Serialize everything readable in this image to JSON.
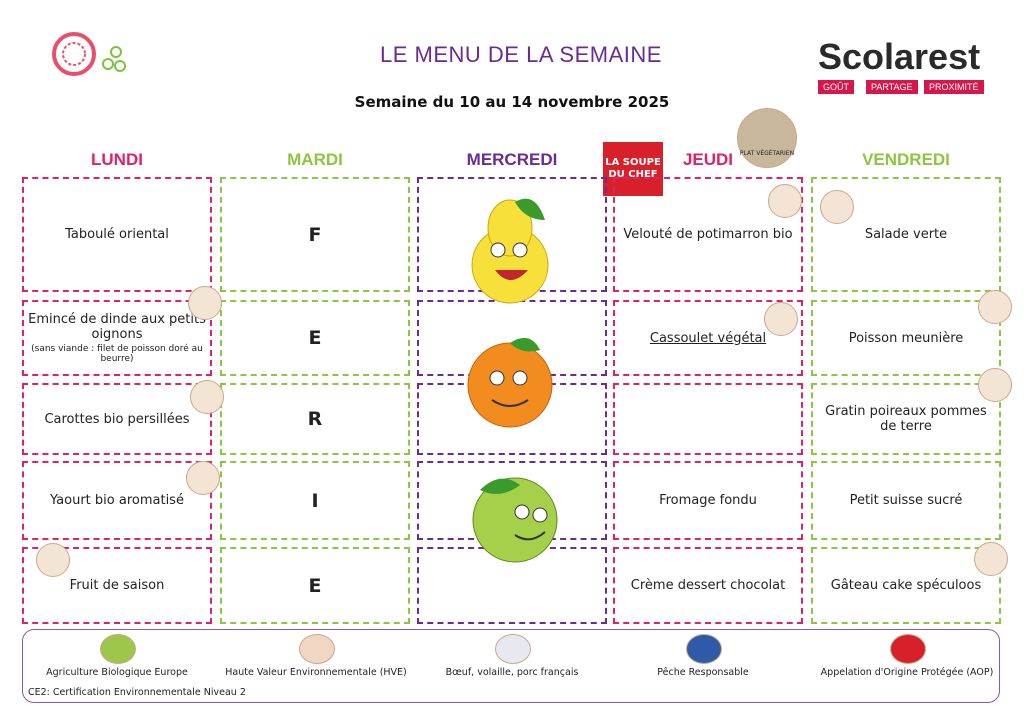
{
  "header": {
    "title": "LE MENU DE LA SEMAINE",
    "subtitle": "Semaine du 10 au 14 novembre 2025",
    "brand": "Scolarest",
    "tagline": [
      "GOÛT",
      "PARTAGE",
      "PROXIMITÉ"
    ]
  },
  "badges": {
    "soup": "LA SOUPE DU CHEF",
    "veg": "PLAT VÉGÉTARIEN"
  },
  "days": [
    {
      "name": "LUNDI",
      "color": "#e0206a",
      "items": [
        {
          "text": "Taboulé oriental"
        },
        {
          "text": "Emincé de dinde aux petits oignons",
          "note": "(sans viande : filet de poisson doré au beurre)"
        },
        {
          "text": "Carottes bio persillées"
        },
        {
          "text": "Yaourt bio aromatisé"
        },
        {
          "text": "Fruit de saison"
        }
      ]
    },
    {
      "name": "MARDI",
      "color": "#8dc63f",
      "items": [
        {
          "text": "F"
        },
        {
          "text": "E"
        },
        {
          "text": "R"
        },
        {
          "text": "I"
        },
        {
          "text": "E"
        }
      ]
    },
    {
      "name": "MERCREDI",
      "color": "#6a2c91",
      "items": [
        null,
        null,
        null,
        null,
        null
      ]
    },
    {
      "name": "JEUDI",
      "color": "#e0206a",
      "items": [
        {
          "text": "Velouté de potimarron bio"
        },
        {
          "text": "Cassoulet végétal"
        },
        null,
        {
          "text": "Fromage fondu"
        },
        {
          "text": "Crème dessert chocolat"
        }
      ]
    },
    {
      "name": "VENDREDI",
      "color": "#8dc63f",
      "items": [
        {
          "text": "Salade verte"
        },
        {
          "text": "Poisson meunière"
        },
        {
          "text": "Gratin poireaux pommes de terre"
        },
        {
          "text": "Petit suisse sucré"
        },
        {
          "text": "Gâteau cake spéculoos"
        }
      ]
    }
  ],
  "legend": [
    "Agriculture Biologique Europe",
    "Haute Valeur Environnementale (HVE)",
    "Bœuf, volaille, porc français",
    "Pêche Responsable",
    "Appelation d'Origine Protégée (AOP)"
  ],
  "footnote": "CE2: Certification Environnementale Niveau 2"
}
